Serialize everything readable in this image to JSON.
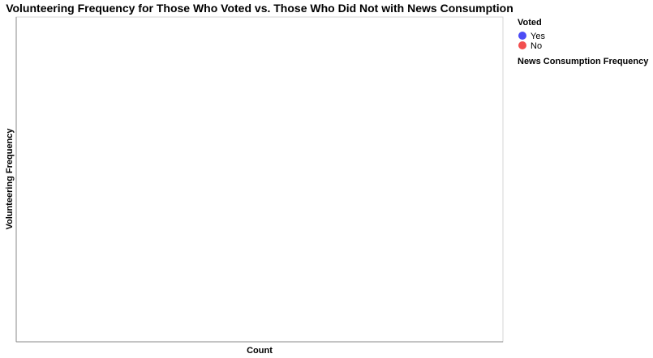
{
  "chart_data": {
    "type": "bar",
    "title": "Volunteering Frequency for Those Who Voted vs. Those Who Did Not with News Consumption",
    "xlabel": "Count",
    "ylabel": "Volunteering Frequency",
    "categories": [],
    "series": [],
    "grid": false,
    "legend_placement": "right",
    "legend": {
      "color_title": "Voted",
      "color_entries": [
        {
          "label": "Yes",
          "color": "#4c4cf5"
        },
        {
          "label": "No",
          "color": "#f24f4f"
        }
      ],
      "facet_title": "News Consumption Frequency"
    }
  }
}
